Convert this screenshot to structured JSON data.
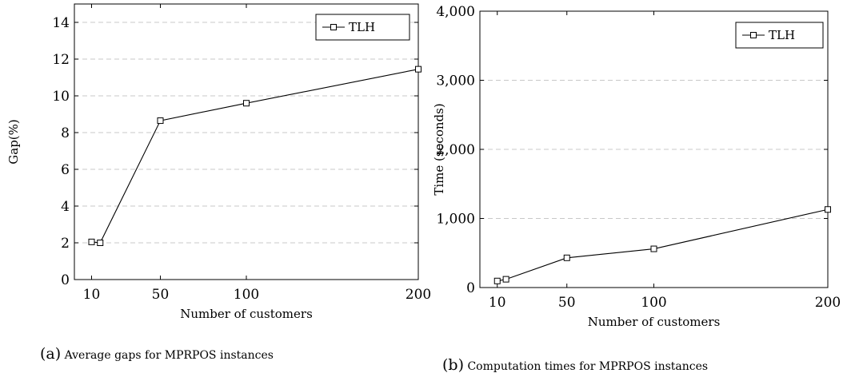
{
  "chart_data": [
    {
      "type": "line",
      "caption_tag": "(a)",
      "caption_text": "Average gaps for MPRPOS instances",
      "xlabel": "Number of customers",
      "ylabel": "Gap(%)",
      "xlim": [
        0,
        200
      ],
      "ylim": [
        0,
        15
      ],
      "xticks": [
        10,
        50,
        100,
        200
      ],
      "xtick_labels": [
        "10",
        "50",
        "100",
        "200"
      ],
      "yticks": [
        0,
        2,
        4,
        6,
        8,
        10,
        12,
        14
      ],
      "ytick_labels": [
        "0",
        "2",
        "4",
        "6",
        "8",
        "10",
        "12",
        "14"
      ],
      "grid": "horizontal dashed",
      "legend_position": "top-right",
      "series": [
        {
          "name": "TLH",
          "marker": "square",
          "color": "#000000",
          "x": [
            10,
            15,
            50,
            100,
            200
          ],
          "y": [
            2.05,
            2.0,
            8.65,
            9.6,
            11.45
          ]
        }
      ]
    },
    {
      "type": "line",
      "caption_tag": "(b)",
      "caption_text": "Computation times for MPRPOS instances",
      "xlabel": "Number of customers",
      "ylabel": "Time (seconds)",
      "xlim": [
        0,
        200
      ],
      "ylim": [
        0,
        4000
      ],
      "xticks": [
        10,
        50,
        100,
        200
      ],
      "xtick_labels": [
        "10",
        "50",
        "100",
        "200"
      ],
      "yticks": [
        0,
        1000,
        2000,
        3000,
        4000
      ],
      "ytick_labels": [
        "0",
        "1,000",
        "2,000",
        "3,000",
        "4,000"
      ],
      "grid": "horizontal dashed",
      "legend_position": "top-right",
      "series": [
        {
          "name": "TLH",
          "marker": "square",
          "color": "#000000",
          "x": [
            10,
            15,
            50,
            100,
            200
          ],
          "y": [
            95,
            120,
            430,
            560,
            1130
          ]
        }
      ]
    }
  ]
}
